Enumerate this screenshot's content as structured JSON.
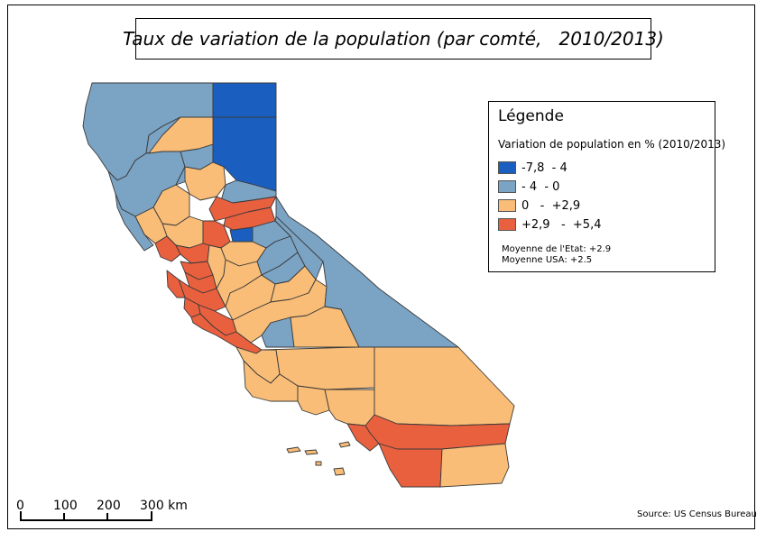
{
  "map": {
    "title": "Taux de variation de la population (par comté,   2010/2013)",
    "legend": {
      "title": "Légende",
      "subtitle": "Variation de population en % (2010/2013)",
      "items": [
        {
          "label": "-7,8  - 4",
          "color": "#1a5fbf"
        },
        {
          "label": "- 4  - 0",
          "color": "#7aa3c4"
        },
        {
          "label": "0   -  +2,9",
          "color": "#f9bd77"
        },
        {
          "label": "+2,9   -  +5,4",
          "color": "#e9603f"
        }
      ],
      "notes": [
        "Moyenne de l'Etat: +2.9",
        "Moyenne USA: +2.5"
      ]
    },
    "scale_bar": {
      "ticks": [
        "0",
        "100",
        "200",
        "300 km"
      ]
    },
    "source": "Source: US Census Bureau"
  }
}
